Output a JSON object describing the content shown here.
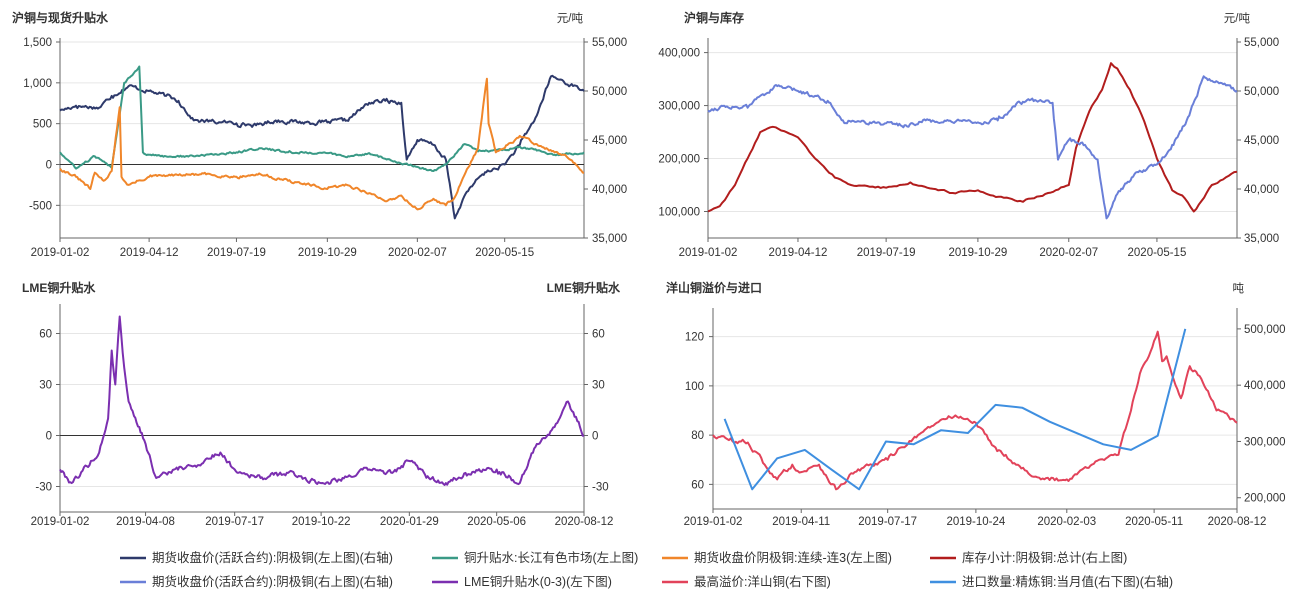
{
  "legend": [
    {
      "label": "期货收盘价(活跃合约):阴极铜(左上图)(右轴)",
      "color": "#2e3a6b"
    },
    {
      "label": "铜升贴水:长江有色市场(左上图)",
      "color": "#3a9a86"
    },
    {
      "label": "期货收盘价阴极铜:连续-连3(左上图)",
      "color": "#f0862a"
    },
    {
      "label": "库存小计:阴极铜:总计(右上图)",
      "color": "#b21d1d"
    },
    {
      "label": "期货收盘价(活跃合约):阴极铜(右上图)(右轴)",
      "color": "#6a7fd8"
    },
    {
      "label": "LME铜升贴水(0-3)(左下图)",
      "color": "#7b2fb0"
    },
    {
      "label": "最高溢价:洋山铜(右下图)",
      "color": "#e2435a"
    },
    {
      "label": "进口数量:精炼铜:当月值(右下图)(右轴)",
      "color": "#3f8fe0"
    }
  ],
  "chart_data": [
    {
      "type": "line",
      "title": "沪铜与现货升贴水",
      "right_unit": "元/吨",
      "x_tick_labels": [
        "2019-01-02",
        "2019-04-12",
        "2019-07-19",
        "2019-10-29",
        "2020-02-07",
        "2020-05-15"
      ],
      "x_range": [
        "2019-01-02",
        "2020-08-12"
      ],
      "ylim_left": [
        -900,
        1500
      ],
      "ylim_right": [
        35000,
        55000
      ],
      "y_ticks_left": [
        "1,500",
        "1,000",
        "500",
        "0",
        "-500"
      ],
      "y_ticks_right": [
        "55,000",
        "50,000",
        "45,000",
        "40,000",
        "35,000"
      ],
      "series": [
        {
          "name": "期货收盘价(活跃合约):阴极铜(左上图)(右轴)",
          "axis": "right",
          "color": "#2e3a6b",
          "x": [
            "2019-01-02",
            "2019-01-20",
            "2019-02-15",
            "2019-03-01",
            "2019-03-20",
            "2019-04-12",
            "2019-05-01",
            "2019-05-15",
            "2019-06-01",
            "2019-07-01",
            "2019-07-19",
            "2019-08-10",
            "2019-09-01",
            "2019-10-01",
            "2019-10-29",
            "2019-11-20",
            "2019-12-15",
            "2020-01-02",
            "2020-01-20",
            "2020-01-26",
            "2020-02-07",
            "2020-02-25",
            "2020-03-10",
            "2020-03-20",
            "2020-04-01",
            "2020-04-20",
            "2020-05-15",
            "2020-06-01",
            "2020-06-20",
            "2020-07-06",
            "2020-07-20",
            "2020-08-12"
          ],
          "values": [
            48000,
            48500,
            48300,
            49500,
            50500,
            50000,
            49500,
            49000,
            47000,
            46800,
            46700,
            46500,
            47000,
            46800,
            46800,
            47000,
            48800,
            49000,
            48800,
            43000,
            45000,
            44500,
            43000,
            37000,
            39500,
            41500,
            42500,
            44500,
            47500,
            51500,
            51000,
            50000
          ]
        },
        {
          "name": "铜升贴水:长江有色市场(左上图)",
          "axis": "left",
          "color": "#3a9a86",
          "x": [
            "2019-01-02",
            "2019-01-20",
            "2019-02-10",
            "2019-03-01",
            "2019-03-15",
            "2019-04-01",
            "2019-04-05",
            "2019-04-12",
            "2019-05-01",
            "2019-06-01",
            "2019-07-01",
            "2019-07-19",
            "2019-08-15",
            "2019-09-15",
            "2019-10-29",
            "2019-11-20",
            "2019-12-15",
            "2020-01-02",
            "2020-01-20",
            "2020-02-07",
            "2020-02-25",
            "2020-03-10",
            "2020-03-31",
            "2020-04-15",
            "2020-05-15",
            "2020-06-01",
            "2020-06-20",
            "2020-07-10",
            "2020-07-25",
            "2020-08-12"
          ],
          "values": [
            150,
            -50,
            100,
            -40,
            1000,
            1200,
            150,
            120,
            100,
            100,
            130,
            150,
            200,
            150,
            140,
            90,
            140,
            70,
            10,
            -30,
            -80,
            0,
            250,
            160,
            180,
            220,
            170,
            120,
            130,
            150
          ]
        },
        {
          "name": "期货收盘价阴极铜:连续-连3(左上图)",
          "axis": "left",
          "color": "#f0862a",
          "x": [
            "2019-01-02",
            "2019-01-20",
            "2019-02-05",
            "2019-02-10",
            "2019-02-20",
            "2019-03-01",
            "2019-03-10",
            "2019-03-12",
            "2019-03-15",
            "2019-03-20",
            "2019-04-12",
            "2019-05-15",
            "2019-06-15",
            "2019-07-19",
            "2019-08-15",
            "2019-09-15",
            "2019-10-29",
            "2019-11-20",
            "2019-12-15",
            "2020-01-02",
            "2020-01-20",
            "2020-02-07",
            "2020-02-25",
            "2020-03-10",
            "2020-03-20",
            "2020-04-01",
            "2020-04-15",
            "2020-04-25",
            "2020-04-27",
            "2020-05-05",
            "2020-05-15",
            "2020-06-01",
            "2020-06-20",
            "2020-07-10",
            "2020-07-25",
            "2020-08-12"
          ],
          "values": [
            -50,
            -150,
            -300,
            -100,
            -200,
            -80,
            700,
            -150,
            -200,
            -250,
            -150,
            -130,
            -120,
            -150,
            -120,
            -200,
            -300,
            -250,
            -350,
            -450,
            -380,
            -550,
            -420,
            -500,
            -400,
            -100,
            200,
            1050,
            500,
            150,
            200,
            350,
            250,
            150,
            80,
            -100
          ]
        }
      ]
    },
    {
      "type": "line",
      "title": "沪铜与库存",
      "right_unit": "元/吨",
      "x_tick_labels": [
        "2019-01-02",
        "2019-04-12",
        "2019-07-19",
        "2019-10-29",
        "2020-02-07",
        "2020-05-15"
      ],
      "x_range": [
        "2019-01-02",
        "2020-08-12"
      ],
      "ylim_left": [
        50000,
        420000
      ],
      "ylim_right": [
        35000,
        55000
      ],
      "y_ticks_left": [
        "400,000",
        "300,000",
        "200,000",
        "100,000"
      ],
      "y_ticks_right": [
        "55,000",
        "50,000",
        "45,000",
        "40,000",
        "35,000"
      ],
      "series": [
        {
          "name": "库存小计:阴极铜:总计(右上图)",
          "axis": "left",
          "color": "#b21d1d",
          "x": [
            "2019-01-02",
            "2019-01-15",
            "2019-02-01",
            "2019-02-15",
            "2019-03-01",
            "2019-03-15",
            "2019-04-12",
            "2019-05-01",
            "2019-05-20",
            "2019-06-10",
            "2019-07-19",
            "2019-08-15",
            "2019-09-15",
            "2019-10-01",
            "2019-10-29",
            "2019-11-15",
            "2019-12-15",
            "2020-01-15",
            "2020-02-07",
            "2020-02-15",
            "2020-03-01",
            "2020-03-15",
            "2020-03-25",
            "2020-04-01",
            "2020-04-15",
            "2020-05-01",
            "2020-05-15",
            "2020-06-01",
            "2020-06-15",
            "2020-06-25",
            "2020-07-15",
            "2020-08-12"
          ],
          "values": [
            100000,
            110000,
            150000,
            200000,
            250000,
            260000,
            240000,
            200000,
            170000,
            150000,
            145000,
            155000,
            140000,
            135000,
            140000,
            130000,
            120000,
            135000,
            150000,
            220000,
            290000,
            330000,
            380000,
            370000,
            330000,
            270000,
            200000,
            140000,
            125000,
            100000,
            150000,
            175000
          ]
        },
        {
          "name": "期货收盘价(活跃合约):阴极铜(右上图)(右轴)",
          "axis": "right",
          "color": "#6a7fd8",
          "x": [
            "2019-01-02",
            "2019-01-20",
            "2019-02-15",
            "2019-03-01",
            "2019-03-20",
            "2019-04-12",
            "2019-05-01",
            "2019-05-15",
            "2019-06-01",
            "2019-07-01",
            "2019-07-19",
            "2019-08-10",
            "2019-09-01",
            "2019-10-01",
            "2019-10-29",
            "2019-11-20",
            "2019-12-15",
            "2020-01-02",
            "2020-01-20",
            "2020-01-26",
            "2020-02-07",
            "2020-02-25",
            "2020-03-10",
            "2020-03-20",
            "2020-04-01",
            "2020-04-20",
            "2020-05-15",
            "2020-06-01",
            "2020-06-20",
            "2020-07-06",
            "2020-07-20",
            "2020-08-12"
          ],
          "values": [
            48000,
            48500,
            48300,
            49500,
            50500,
            50000,
            49500,
            49000,
            47000,
            46800,
            46700,
            46500,
            47000,
            46800,
            46800,
            47000,
            48800,
            49000,
            48800,
            43000,
            45000,
            44500,
            43000,
            37000,
            39500,
            41500,
            42500,
            44500,
            47500,
            51500,
            51000,
            50000
          ]
        }
      ]
    },
    {
      "type": "line",
      "title": "LME铜升贴水",
      "right_title": "LME铜升贴水",
      "x_tick_labels": [
        "2019-01-02",
        "2019-04-08",
        "2019-07-17",
        "2019-10-22",
        "2020-01-29",
        "2020-05-06",
        "2020-08-12"
      ],
      "x_range": [
        "2019-01-02",
        "2020-08-12"
      ],
      "ylim": [
        -45,
        75
      ],
      "y_ticks_left": [
        "60",
        "30",
        "0",
        "-30"
      ],
      "y_ticks_right": [
        "60",
        "30",
        "0",
        "-30"
      ],
      "series": [
        {
          "name": "LME铜升贴水(0-3)(左下图)",
          "axis": "left",
          "color": "#7b2fb0",
          "x": [
            "2019-01-02",
            "2019-01-15",
            "2019-02-01",
            "2019-02-15",
            "2019-02-25",
            "2019-03-01",
            "2019-03-05",
            "2019-03-10",
            "2019-03-15",
            "2019-03-20",
            "2019-04-01",
            "2019-04-08",
            "2019-04-20",
            "2019-05-10",
            "2019-06-01",
            "2019-07-01",
            "2019-07-17",
            "2019-08-15",
            "2019-09-15",
            "2019-10-22",
            "2019-11-15",
            "2019-12-15",
            "2020-01-10",
            "2020-01-29",
            "2020-02-20",
            "2020-03-10",
            "2020-04-01",
            "2020-05-06",
            "2020-06-01",
            "2020-06-20",
            "2020-07-10",
            "2020-07-25",
            "2020-08-12"
          ],
          "values": [
            -20,
            -28,
            -18,
            -10,
            10,
            50,
            30,
            70,
            40,
            20,
            5,
            -5,
            -25,
            -20,
            -18,
            -10,
            -20,
            -25,
            -22,
            -28,
            -25,
            -20,
            -22,
            -15,
            -25,
            -28,
            -22,
            -20,
            -28,
            -5,
            5,
            20,
            0
          ]
        }
      ]
    },
    {
      "type": "line",
      "title": "洋山铜溢价与进口",
      "right_unit": "吨",
      "x_tick_labels": [
        "2019-01-02",
        "2019-04-11",
        "2019-07-17",
        "2019-10-24",
        "2020-02-03",
        "2020-05-11",
        "2020-08-12"
      ],
      "x_range": [
        "2019-01-02",
        "2020-08-12"
      ],
      "ylim_left": [
        50,
        130
      ],
      "ylim_right": [
        180000,
        530000
      ],
      "y_ticks_left": [
        "120",
        "100",
        "80",
        "60"
      ],
      "y_ticks_right": [
        "500,000",
        "400,000",
        "300,000",
        "200,000"
      ],
      "series": [
        {
          "name": "最高溢价:洋山铜(右下图)",
          "axis": "left",
          "color": "#e2435a",
          "x": [
            "2019-01-02",
            "2019-01-20",
            "2019-02-10",
            "2019-03-01",
            "2019-03-15",
            "2019-04-01",
            "2019-04-11",
            "2019-05-01",
            "2019-05-20",
            "2019-06-10",
            "2019-07-17",
            "2019-08-01",
            "2019-08-20",
            "2019-09-10",
            "2019-10-01",
            "2019-10-24",
            "2019-11-15",
            "2019-12-10",
            "2020-01-05",
            "2020-02-03",
            "2020-02-20",
            "2020-03-10",
            "2020-04-01",
            "2020-04-15",
            "2020-04-25",
            "2020-05-05",
            "2020-05-15",
            "2020-05-20",
            "2020-05-25",
            "2020-06-10",
            "2020-06-20",
            "2020-07-01",
            "2020-07-20",
            "2020-08-12"
          ],
          "values": [
            80,
            78,
            77,
            68,
            62,
            68,
            65,
            68,
            58,
            65,
            70,
            75,
            80,
            85,
            88,
            85,
            75,
            68,
            62,
            62,
            66,
            70,
            72,
            90,
            105,
            112,
            122,
            110,
            112,
            95,
            108,
            104,
            90,
            85
          ]
        },
        {
          "name": "进口数量:精炼铜:当月值(右下图)(右轴)",
          "axis": "right",
          "color": "#3f8fe0",
          "x": [
            "2019-01-15",
            "2019-02-15",
            "2019-03-15",
            "2019-04-15",
            "2019-05-15",
            "2019-06-15",
            "2019-07-15",
            "2019-08-15",
            "2019-09-15",
            "2019-10-15",
            "2019-11-15",
            "2019-12-15",
            "2020-01-15",
            "2020-03-15",
            "2020-04-15",
            "2020-05-15",
            "2020-06-15"
          ],
          "values": [
            340000,
            215000,
            270000,
            285000,
            250000,
            215000,
            300000,
            295000,
            320000,
            315000,
            365000,
            360000,
            335000,
            295000,
            285000,
            310000,
            500000
          ]
        }
      ]
    }
  ]
}
